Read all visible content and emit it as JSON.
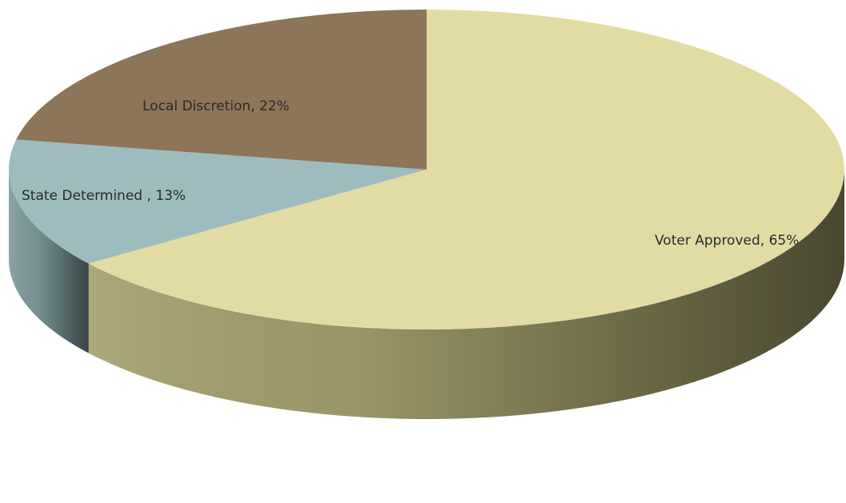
{
  "chart_data": {
    "type": "pie",
    "title": "",
    "legend": "none",
    "style": "3d-tilted",
    "slices": [
      {
        "name": "Voter Approved",
        "value": 65,
        "label": "Voter Approved, 65%",
        "color": "#e2dca4",
        "side_color": "#a39e6c"
      },
      {
        "name": "State Determined",
        "value": 13,
        "label": "State Determined , 13%",
        "color": "#9ebcbe",
        "side_color": "#7e9a9c"
      },
      {
        "name": "Local Discretion",
        "value": 22,
        "label": "Local Discretion, 22%",
        "color": "#8c7558",
        "side_color": "#6b5941"
      }
    ]
  }
}
